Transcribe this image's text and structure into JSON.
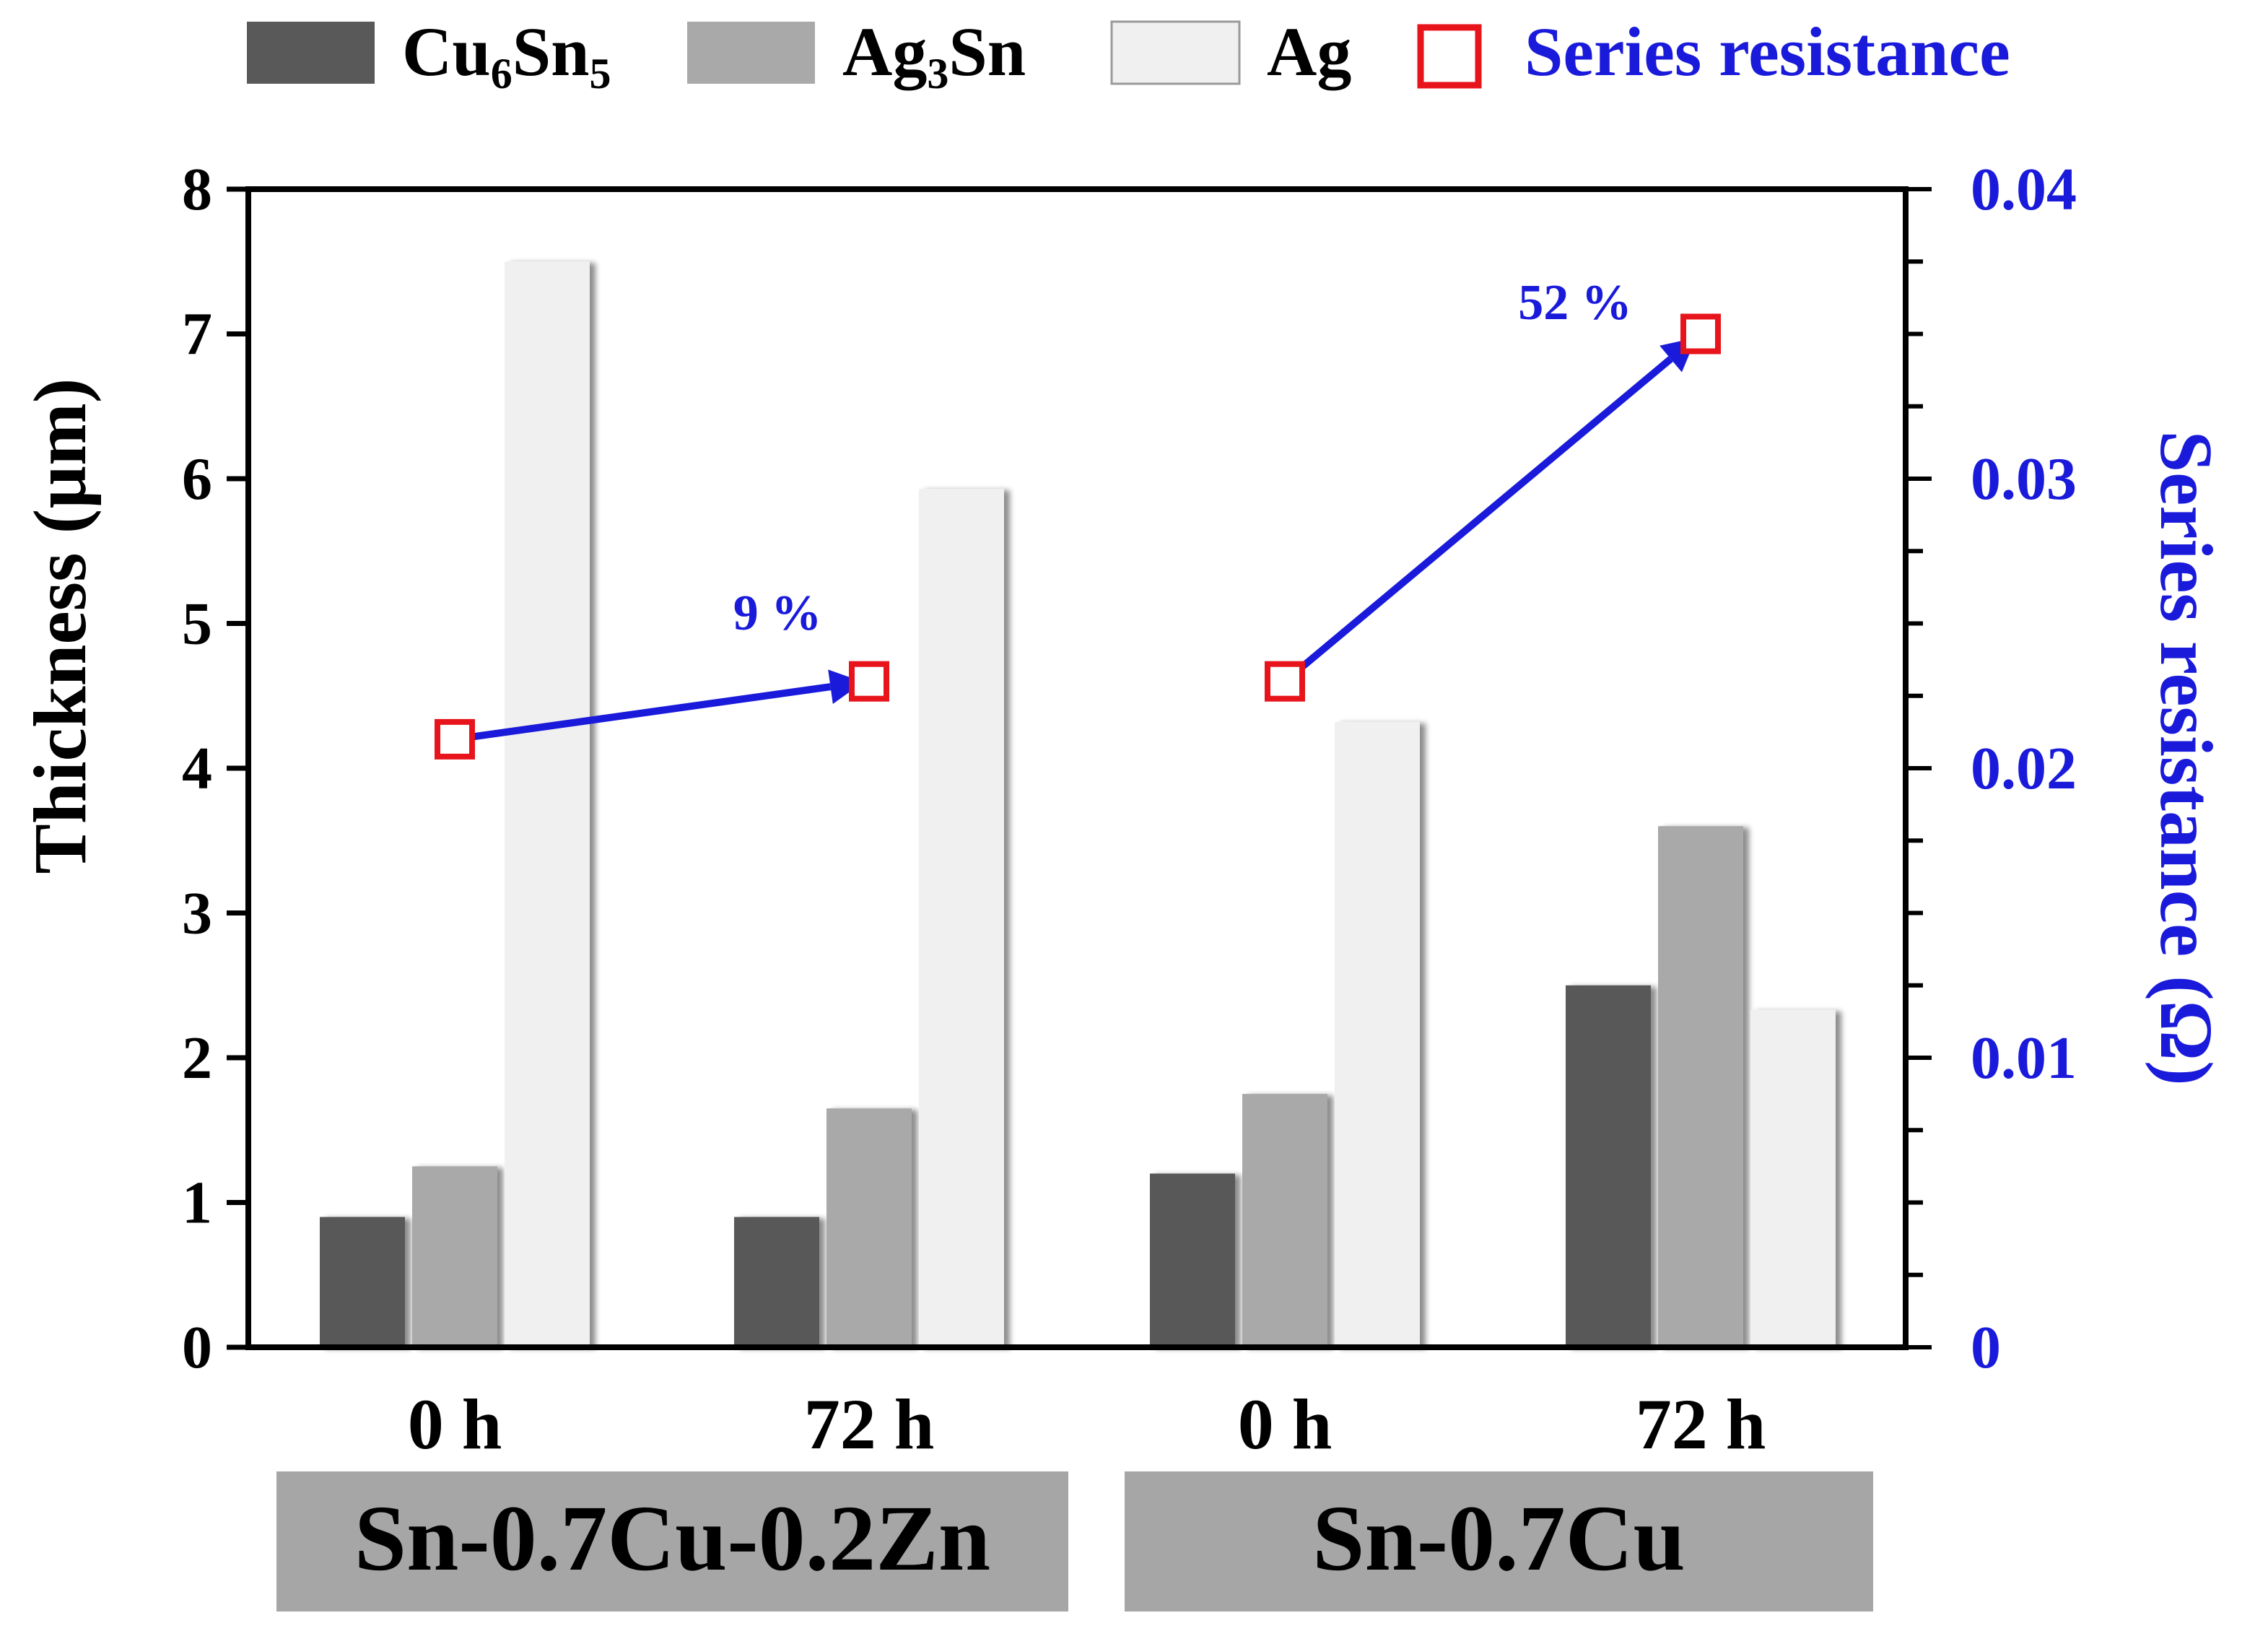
{
  "chart_data": {
    "type": "bar",
    "categories": [
      "0 h",
      "72 h",
      "0 h",
      "72 h"
    ],
    "groups": [
      {
        "label": "Sn-0.7Cu-0.2Zn",
        "categories": [
          0,
          1
        ]
      },
      {
        "label": "Sn-0.7Cu",
        "categories": [
          2,
          3
        ]
      }
    ],
    "series": [
      {
        "name": "Cu6Sn5",
        "legend_base": "Cu",
        "legend_sub1": "6",
        "legend_mid": "Sn",
        "legend_sub2": "5",
        "color": "#595959",
        "values": [
          0.9,
          0.9,
          1.2,
          2.5
        ]
      },
      {
        "name": "Ag3Sn",
        "legend_base": "Ag",
        "legend_sub1": "3",
        "legend_mid": "Sn",
        "legend_sub2": "",
        "color": "#a9a9a9",
        "values": [
          1.25,
          1.65,
          1.75,
          3.6
        ]
      },
      {
        "name": "Ag",
        "legend_base": "Ag",
        "legend_sub1": "",
        "legend_mid": "",
        "legend_sub2": "",
        "color": "#f0f0f0",
        "values": [
          7.5,
          5.93,
          4.32,
          2.33
        ]
      }
    ],
    "resistance_series": {
      "name": "Series resistance",
      "color": "#e8141c",
      "label_color": "#1a1adb",
      "values": [
        0.021,
        0.023,
        0.023,
        0.035
      ]
    },
    "annotations": [
      {
        "text": "9 %",
        "from": 0,
        "to": 1
      },
      {
        "text": "52 %",
        "from": 2,
        "to": 3
      }
    ],
    "ylabel": "Thickness (µm)",
    "y2label": "Series resistance (Ω)",
    "ylim": [
      0,
      8
    ],
    "y2lim": [
      0,
      0.04
    ],
    "yticks": [
      "0",
      "1",
      "2",
      "3",
      "4",
      "5",
      "6",
      "7",
      "8"
    ],
    "y2ticks": [
      "0",
      "0.01",
      "0.02",
      "0.03",
      "0.04"
    ],
    "legend_position": "top",
    "grid": false,
    "colors": {
      "axis": "#000000",
      "right_axis_text": "#1a1adb",
      "arrow": "#1a1adb",
      "group_box": "#a6a6a6"
    }
  }
}
